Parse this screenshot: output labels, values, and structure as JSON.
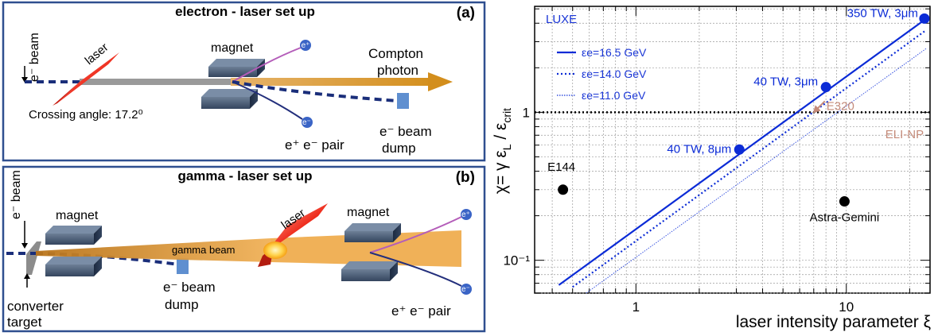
{
  "panel_a": {
    "title": "electron - laser set up",
    "letter": "(a)",
    "ebeam": "e⁻ beam",
    "laser": "laser",
    "magnet": "magnet",
    "positron": "e⁺",
    "electron": "e⁻",
    "compton_line1": "Compton",
    "compton_line2": "photon",
    "crossing": "Crossing angle: 17.2⁰",
    "pair": "e⁺ e⁻ pair",
    "dump_line1": "e⁻ beam",
    "dump_line2": "dump"
  },
  "panel_b": {
    "title": "gamma - laser set up",
    "letter": "(b)",
    "ebeam": "e⁻ beam",
    "magnet_left": "magnet",
    "magnet_right": "magnet",
    "laser": "laser",
    "gamma": "gamma beam",
    "positron": "e⁺",
    "electron": "e⁻",
    "dump_line1": "e⁻ beam",
    "dump_line2": "dump",
    "converter_line1": "converter",
    "converter_line2": "target",
    "pair": "e⁺ e⁻ pair"
  },
  "chart_data": {
    "type": "line",
    "scale": "log-log",
    "xlabel": "laser intensity parameter ξ",
    "ylabel": "χ= γ ε_L / ε_crit",
    "xlim": [
      0.33,
      25
    ],
    "ylim": [
      0.06,
      5.2
    ],
    "xticks": [
      {
        "v": 1,
        "label": "1"
      },
      {
        "v": 10,
        "label": "10"
      }
    ],
    "yticks": [
      {
        "v": 0.1,
        "label": "10⁻¹"
      },
      {
        "v": 1,
        "label": "1"
      }
    ],
    "tag": "LUXE",
    "grid": true,
    "legend_placement": "top-left",
    "reference_line": {
      "y": 1,
      "style": "dotted"
    },
    "series": [
      {
        "name": "εe=16.5 GeV",
        "style": "solid",
        "x": [
          0.43,
          24
        ],
        "y": [
          0.068,
          4.3
        ],
        "color": "#0b2bd6"
      },
      {
        "name": "εe=14.0 GeV",
        "style": "dotted",
        "x": [
          0.5,
          24
        ],
        "y": [
          0.066,
          3.6
        ],
        "color": "#0b2bd6"
      },
      {
        "name": "εe=11.0 GeV",
        "style": "thin",
        "x": [
          0.58,
          24
        ],
        "y": [
          0.06,
          2.7
        ],
        "color": "#3a55e0"
      }
    ],
    "points": [
      {
        "label": "350 TW, 3μm",
        "x": 23.5,
        "y": 4.3,
        "color": "#0b2bd6"
      },
      {
        "label": "40 TW, 3μm",
        "x": 8.0,
        "y": 1.48,
        "color": "#0b2bd6"
      },
      {
        "label": "40 TW, 8μm",
        "x": 3.1,
        "y": 0.56,
        "color": "#0b2bd6"
      },
      {
        "label": "E144",
        "x": 0.45,
        "y": 0.3,
        "color": "#000000"
      },
      {
        "label": "Astra-Gemini",
        "x": 9.8,
        "y": 0.25,
        "color": "#000000"
      }
    ],
    "annotations": [
      {
        "label": "E320",
        "x": 7.0,
        "y": 1.0,
        "color": "#c58b7a"
      },
      {
        "label": "ELI-NP",
        "x": 16.0,
        "y": 0.72,
        "color": "#c58b7a"
      }
    ]
  }
}
